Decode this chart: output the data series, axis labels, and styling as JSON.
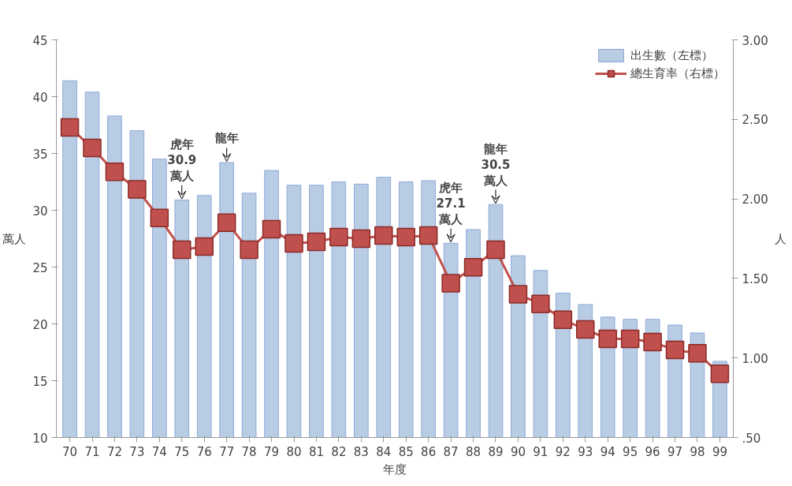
{
  "chart_data": {
    "type": "bar",
    "categories": [
      "70",
      "71",
      "72",
      "73",
      "74",
      "75",
      "76",
      "77",
      "78",
      "79",
      "80",
      "81",
      "82",
      "83",
      "84",
      "85",
      "86",
      "87",
      "88",
      "89",
      "90",
      "91",
      "92",
      "93",
      "94",
      "95",
      "96",
      "97",
      "98",
      "99"
    ],
    "series": [
      {
        "name": "出生數（左標）",
        "color": "#b8cce4",
        "values": [
          41.4,
          40.4,
          38.3,
          37.0,
          34.5,
          30.9,
          31.3,
          34.2,
          31.5,
          33.5,
          32.2,
          32.2,
          32.5,
          32.3,
          32.9,
          32.5,
          32.6,
          27.1,
          28.3,
          30.5,
          26.0,
          24.7,
          22.7,
          21.7,
          20.6,
          20.4,
          20.4,
          19.9,
          19.2,
          16.7
        ]
      },
      {
        "name": "總生育率（右標）",
        "type": "line",
        "axis": "y2",
        "color": "#c0504d",
        "marker": "square",
        "values": [
          2.45,
          2.32,
          2.17,
          2.06,
          1.88,
          1.68,
          1.7,
          1.85,
          1.68,
          1.81,
          1.72,
          1.73,
          1.76,
          1.75,
          1.77,
          1.76,
          1.77,
          1.47,
          1.57,
          1.68,
          1.4,
          1.34,
          1.24,
          1.18,
          1.12,
          1.12,
          1.1,
          1.05,
          1.03,
          0.9
        ]
      }
    ],
    "ylabel": "萬人",
    "y2label": "人",
    "xlabel": "年度",
    "ylim": [
      10,
      45
    ],
    "yticks": [
      10,
      15,
      20,
      25,
      30,
      35,
      40,
      45
    ],
    "y2lim": [
      0.5,
      3.0
    ],
    "y2ticks": [
      {
        "value": 0.5,
        "label": ".50"
      },
      {
        "value": 1.0,
        "label": "1.00"
      },
      {
        "value": 1.5,
        "label": "1.50"
      },
      {
        "value": 2.0,
        "label": "2.00"
      },
      {
        "value": 2.5,
        "label": "2.50"
      },
      {
        "value": 3.0,
        "label": "3.00"
      }
    ],
    "annotations": [
      {
        "text": "龍年",
        "x": "77",
        "y": 34.2
      },
      {
        "text": "虎年\n30.9\n萬人",
        "x": "75",
        "y": 30.9
      },
      {
        "text": "虎年\n27.1\n萬人",
        "x": "87",
        "y": 27.1
      },
      {
        "text": "龍年\n30.5\n萬人",
        "x": "89",
        "y": 30.5
      }
    ],
    "legend": "top right",
    "grid": false
  }
}
